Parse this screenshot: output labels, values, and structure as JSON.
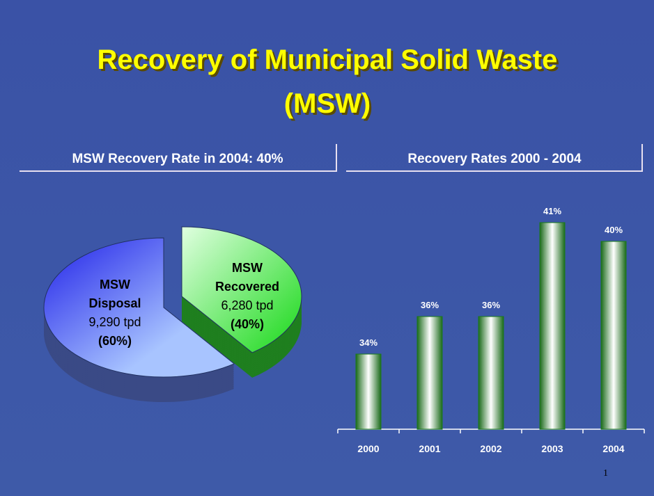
{
  "header": {
    "title_lines": [
      "Recovery of Municipal Solid Waste",
      "(MSW)"
    ]
  },
  "chart_data": [
    {
      "type": "pie",
      "title": "MSW Recovery Rate in 2004: 40%",
      "categories": [
        "MSW Disposal",
        "MSW Recovered"
      ],
      "tonnage": [
        9290,
        6280
      ],
      "tonnage_labels": [
        "9,290 tpd",
        "6,280 tpd"
      ],
      "values": [
        60,
        40
      ],
      "value_labels": [
        "(60%)",
        "(40%)"
      ],
      "colors": [
        "#2a2ae8",
        "#22e022"
      ]
    },
    {
      "type": "bar",
      "title": "Recovery Rates 2000 - 2004",
      "categories": [
        "2000",
        "2001",
        "2002",
        "2003",
        "2004"
      ],
      "values": [
        34,
        36,
        36,
        41,
        40
      ],
      "value_labels": [
        "34%",
        "36%",
        "36%",
        "41%",
        "40%"
      ],
      "color": "#1a7a1a",
      "ylim": [
        30,
        42
      ]
    }
  ],
  "page_number": "1"
}
